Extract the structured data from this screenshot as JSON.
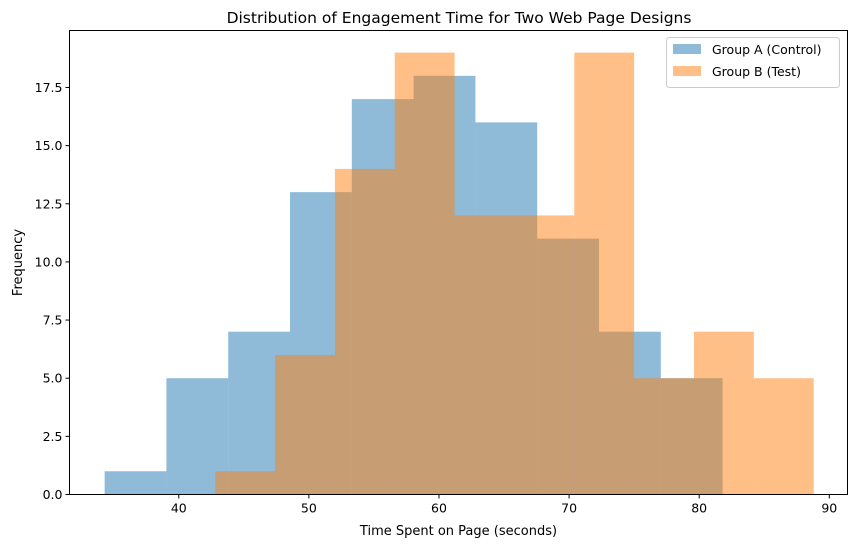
{
  "chart_data": {
    "type": "histogram",
    "title": "Distribution of Engagement Time for Two Web Page Designs",
    "xlabel": "Time Spent on Page (seconds)",
    "ylabel": "Frequency",
    "xlim": [
      31.6,
      91.4
    ],
    "ylim": [
      0,
      19.95
    ],
    "xticks": [
      40,
      50,
      60,
      70,
      80,
      90
    ],
    "yticks": [
      0.0,
      2.5,
      5.0,
      7.5,
      10.0,
      12.5,
      15.0,
      17.5
    ],
    "xtick_labels": [
      "40",
      "50",
      "60",
      "70",
      "80",
      "90"
    ],
    "ytick_labels": [
      "0.0",
      "2.5",
      "5.0",
      "7.5",
      "10.0",
      "12.5",
      "15.0",
      "17.5"
    ],
    "grid": false,
    "legend_position": "top-right",
    "series": [
      {
        "name": "Group A (Control)",
        "color": "#1f77b4",
        "alpha": 0.5,
        "bin_edges": [
          34.3,
          39.05,
          43.8,
          48.55,
          53.3,
          58.05,
          62.8,
          67.55,
          72.3,
          77.05,
          81.8
        ],
        "counts": [
          1,
          5,
          7,
          13,
          17,
          18,
          16,
          11,
          7,
          5
        ]
      },
      {
        "name": "Group B (Test)",
        "color": "#ff7f0e",
        "alpha": 0.5,
        "bin_edges": [
          42.8,
          47.4,
          52.0,
          56.6,
          61.2,
          65.8,
          70.4,
          75.0,
          79.6,
          84.2,
          88.8
        ],
        "counts": [
          1,
          6,
          14,
          19,
          12,
          12,
          19,
          5,
          7,
          5
        ]
      }
    ]
  }
}
